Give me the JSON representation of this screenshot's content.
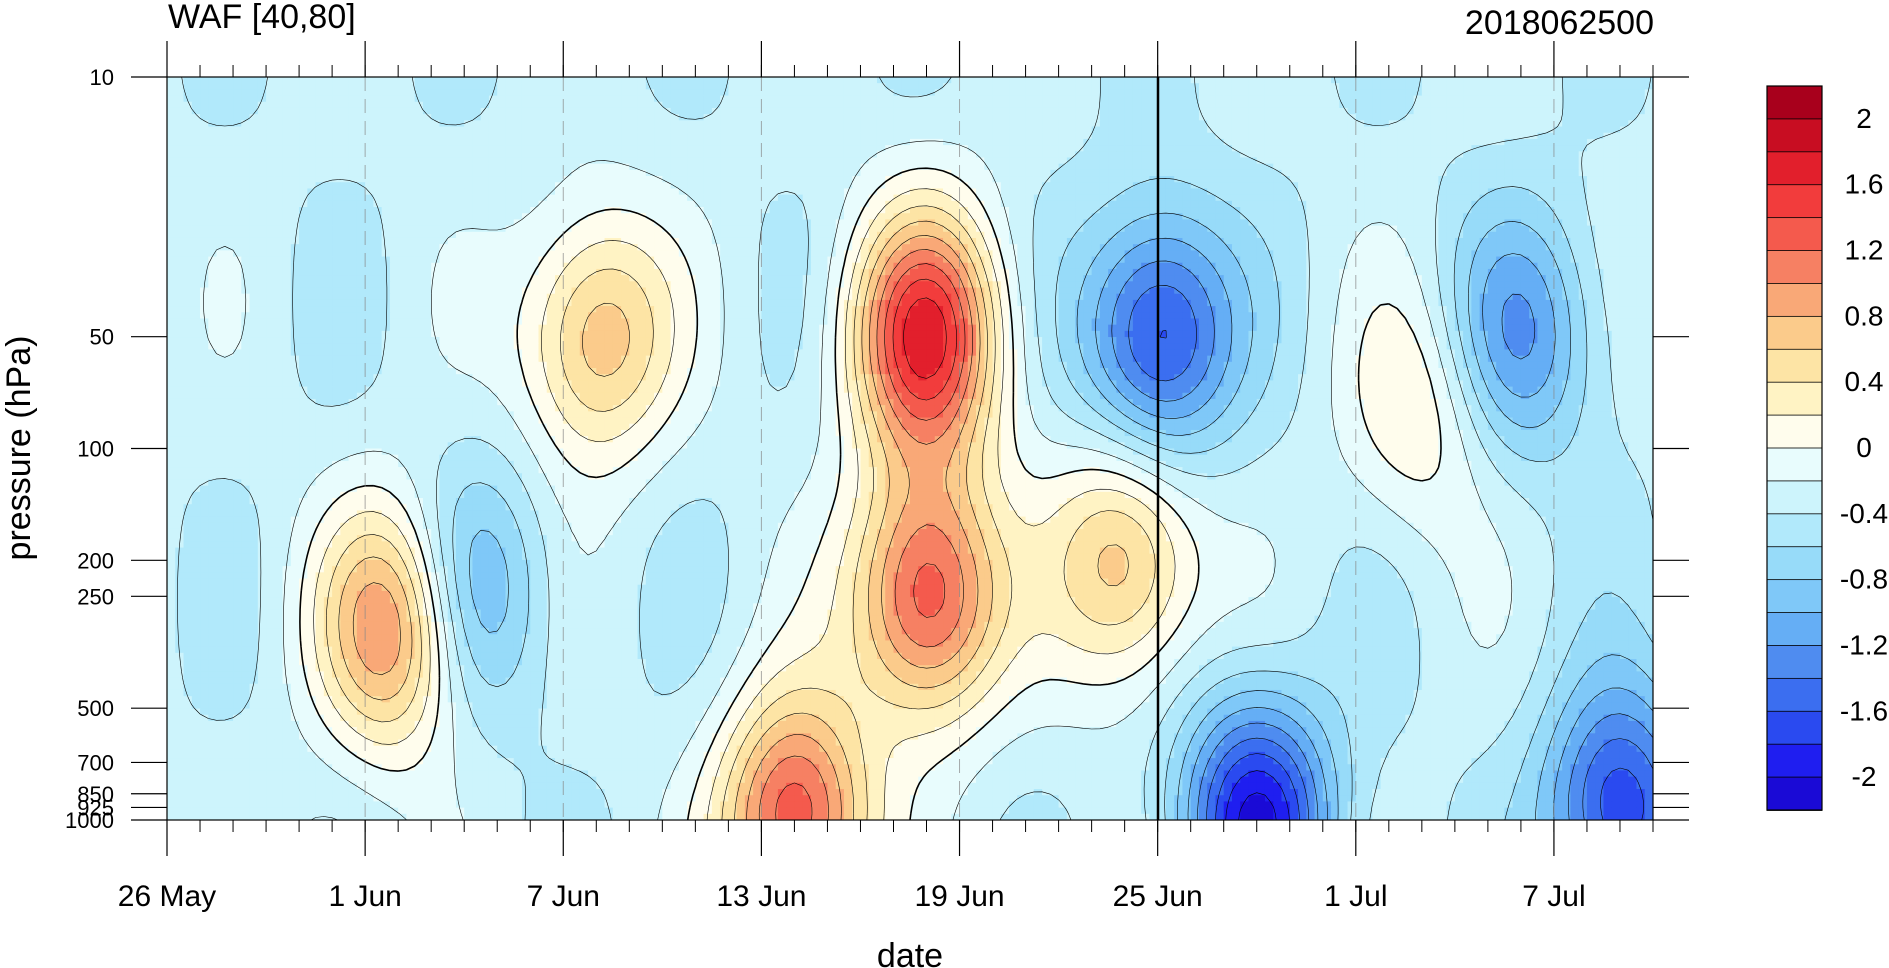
{
  "chart_data": {
    "type": "heatmap",
    "title": "WAF [40,80]",
    "subtitle": "2018062500",
    "xlabel": "date",
    "ylabel": "pressure (hPa)",
    "y_scale": "log",
    "y_reversed": true,
    "ylim": [
      1000,
      10
    ],
    "x_tick_labels": [
      "26 May",
      "1 Jun",
      "7 Jun",
      "13 Jun",
      "19 Jun",
      "25 Jun",
      "1 Jul",
      "7 Jul"
    ],
    "y_tick_labels": [
      "10",
      "50",
      "100",
      "200",
      "250",
      "500",
      "700",
      "850",
      "925",
      "1000"
    ],
    "y_tick_values": [
      10,
      50,
      100,
      200,
      250,
      500,
      700,
      850,
      925,
      1000
    ],
    "highlight_date": "25 Jun",
    "colorbar": {
      "levels": [
        -2.2,
        -2.0,
        -1.8,
        -1.6,
        -1.4,
        -1.2,
        -1.0,
        -0.8,
        -0.6,
        -0.4,
        -0.2,
        0,
        0.2,
        0.4,
        0.6,
        0.8,
        1.0,
        1.2,
        1.4,
        1.6,
        1.8,
        2.0,
        2.2
      ],
      "label_values": [
        2,
        1.6,
        1.2,
        0.8,
        0.4,
        0,
        -0.4,
        -0.8,
        -1.2,
        -1.6,
        -2
      ],
      "labels": [
        "2",
        "1.6",
        "1.2",
        "0.8",
        "0.4",
        "0",
        "-0.4",
        "-0.8",
        "-1.2",
        "-1.6",
        "-2"
      ],
      "colors": [
        "#1a0ad6",
        "#1f1ef0",
        "#2a4af0",
        "#3b6ef0",
        "#4f8cf0",
        "#65aef5",
        "#7fc8f8",
        "#97dbf9",
        "#b1e9fb",
        "#cdf4fc",
        "#e8fcfd",
        "#fffded",
        "#fff3c4",
        "#fde4a5",
        "#fbcb8b",
        "#f9a877",
        "#f68063",
        "#f45a4d",
        "#f23c3c",
        "#e21f2c",
        "#c80d22",
        "#a8001c"
      ]
    },
    "features": [
      {
        "date": "18 Jun",
        "pressure": 50,
        "value": 1.6
      },
      {
        "date": "18 Jun",
        "pressure": 250,
        "value": 1.4
      },
      {
        "date": "2 Jun",
        "pressure": 300,
        "value": 1.2
      },
      {
        "date": "14 Jun",
        "pressure": 1000,
        "value": 1.4
      },
      {
        "date": "8 Jun",
        "pressure": 50,
        "value": 0.8
      },
      {
        "date": "24 Jun",
        "pressure": 200,
        "value": 0.8
      },
      {
        "date": "25 Jun",
        "pressure": 50,
        "value": -1.8
      },
      {
        "date": "6 Jul",
        "pressure": 50,
        "value": -1.2
      },
      {
        "date": "4 Jun",
        "pressure": 250,
        "value": -1.2
      },
      {
        "date": "28 Jun",
        "pressure": 1000,
        "value": -2.0
      },
      {
        "date": "9 Jul",
        "pressure": 950,
        "value": -1.8
      },
      {
        "date": "3 Jul",
        "pressure": 80,
        "value": 0.2
      }
    ]
  }
}
